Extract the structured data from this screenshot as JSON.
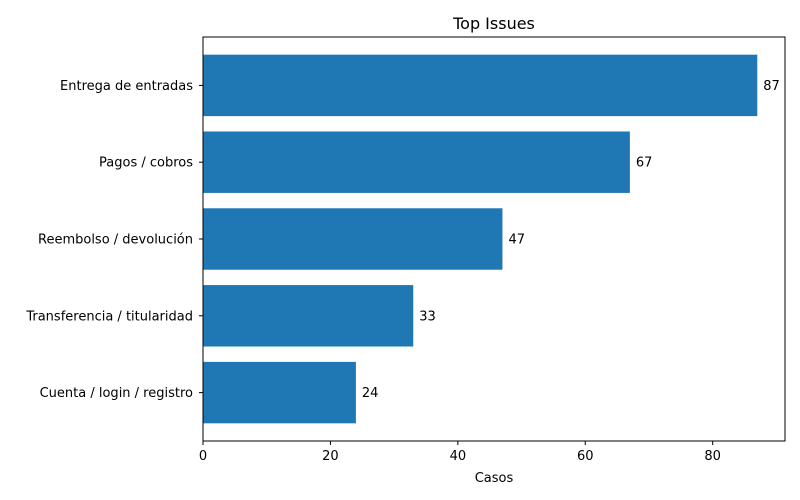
{
  "colors": {
    "bar": "#1f77b4",
    "axis": "#000000",
    "background": "#ffffff"
  },
  "chart_data": {
    "type": "bar",
    "orientation": "horizontal",
    "title": "Top Issues",
    "xlabel": "Casos",
    "ylabel": "",
    "categories": [
      "Entrega de entradas",
      "Pagos / cobros",
      "Reembolso / devolución",
      "Transferencia / titularidad",
      "Cuenta / login / registro"
    ],
    "values": [
      87,
      67,
      47,
      33,
      24
    ],
    "data_labels": [
      "87",
      "67",
      "47",
      "33",
      "24"
    ],
    "xlim": [
      0,
      91.35
    ],
    "xticks": [
      0,
      20,
      40,
      60,
      80
    ],
    "xtick_labels": [
      "0",
      "20",
      "40",
      "60",
      "80"
    ],
    "grid": false,
    "legend": "none"
  }
}
